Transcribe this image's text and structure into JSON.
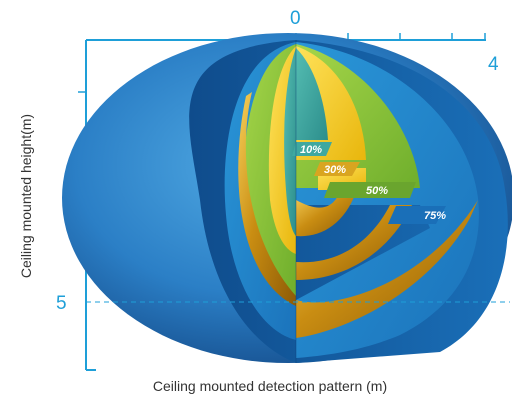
{
  "axes": {
    "x_label": "Ceiling mounted detection pattern (m)",
    "y_label": "Ceiling mounted height(m)",
    "x_tick_start": "0",
    "x_tick_end": "4",
    "y_tick_mark": "5"
  },
  "rings": [
    {
      "label": "10%",
      "color": "#3fa8a0"
    },
    {
      "label": "30%",
      "color": "#f4cf18"
    },
    {
      "label": "50%",
      "color": "#8cc63f"
    },
    {
      "label": "75%",
      "color": "#1a7fc8"
    }
  ],
  "colors": {
    "outer": "#2b7fc6",
    "axis": "#1e9fd8",
    "gold": "#d9a520"
  }
}
